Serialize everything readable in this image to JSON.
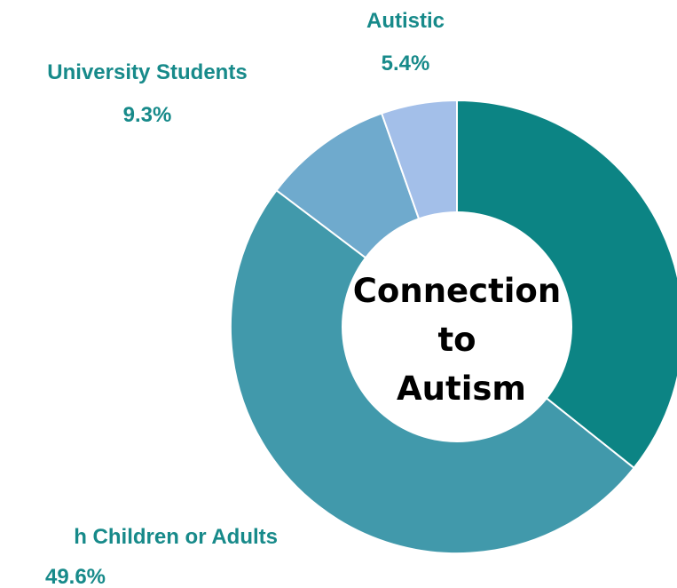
{
  "chart_data": {
    "type": "pie",
    "center_title": [
      "Connection",
      "to",
      "Autism"
    ],
    "label_color": "#178a8a",
    "slices": [
      {
        "name": "",
        "value": 35.7,
        "color": "#0c8484"
      },
      {
        "name": "h Children or Adults",
        "value": 49.6,
        "value_label": "49.6%",
        "color": "#4199ab"
      },
      {
        "name": "University Students",
        "value": 9.3,
        "value_label": "9.3%",
        "color": "#6faacd"
      },
      {
        "name": "Autistic",
        "value": 5.4,
        "value_label": "5.4%",
        "color": "#a3bfe9"
      }
    ]
  }
}
